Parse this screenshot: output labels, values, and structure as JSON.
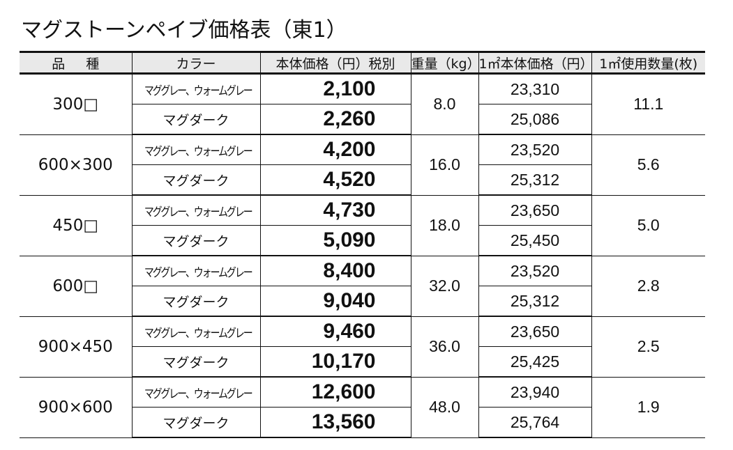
{
  "title": "マグストーンペイブ価格表（東1）",
  "table": {
    "headers": [
      "品種",
      "カラー",
      "本体価格（円）税別",
      "重量（kg）",
      "1㎡本体価格（円）",
      "1㎡使用数量(枚)"
    ],
    "groups": [
      {
        "kind": "300□",
        "weight": "8.0",
        "qty": "11.1",
        "rows": [
          {
            "color": "マググレー、ウォームグレー",
            "price": "2,100",
            "unit_price": "23,310"
          },
          {
            "color": "マグダーク",
            "price": "2,260",
            "unit_price": "25,086"
          }
        ]
      },
      {
        "kind": "600×300",
        "weight": "16.0",
        "qty": "5.6",
        "rows": [
          {
            "color": "マググレー、ウォームグレー",
            "price": "4,200",
            "unit_price": "23,520"
          },
          {
            "color": "マグダーク",
            "price": "4,520",
            "unit_price": "25,312"
          }
        ]
      },
      {
        "kind": "450□",
        "weight": "18.0",
        "qty": "5.0",
        "rows": [
          {
            "color": "マググレー、ウォームグレー",
            "price": "4,730",
            "unit_price": "23,650"
          },
          {
            "color": "マグダーク",
            "price": "5,090",
            "unit_price": "25,450"
          }
        ]
      },
      {
        "kind": "600□",
        "weight": "32.0",
        "qty": "2.8",
        "rows": [
          {
            "color": "マググレー、ウォームグレー",
            "price": "8,400",
            "unit_price": "23,520"
          },
          {
            "color": "マグダーク",
            "price": "9,040",
            "unit_price": "25,312"
          }
        ]
      },
      {
        "kind": "900×450",
        "weight": "36.0",
        "qty": "2.5",
        "rows": [
          {
            "color": "マググレー、ウォームグレー",
            "price": "9,460",
            "unit_price": "23,650"
          },
          {
            "color": "マグダーク",
            "price": "10,170",
            "unit_price": "25,425"
          }
        ]
      },
      {
        "kind": "900×600",
        "weight": "48.0",
        "qty": "1.9",
        "rows": [
          {
            "color": "マググレー、ウォームグレー",
            "price": "12,600",
            "unit_price": "23,940"
          },
          {
            "color": "マグダーク",
            "price": "13,560",
            "unit_price": "25,764"
          }
        ]
      }
    ]
  },
  "colors": {
    "header_bg": "#e9e9e9",
    "border": "#111111",
    "text": "#111111"
  }
}
